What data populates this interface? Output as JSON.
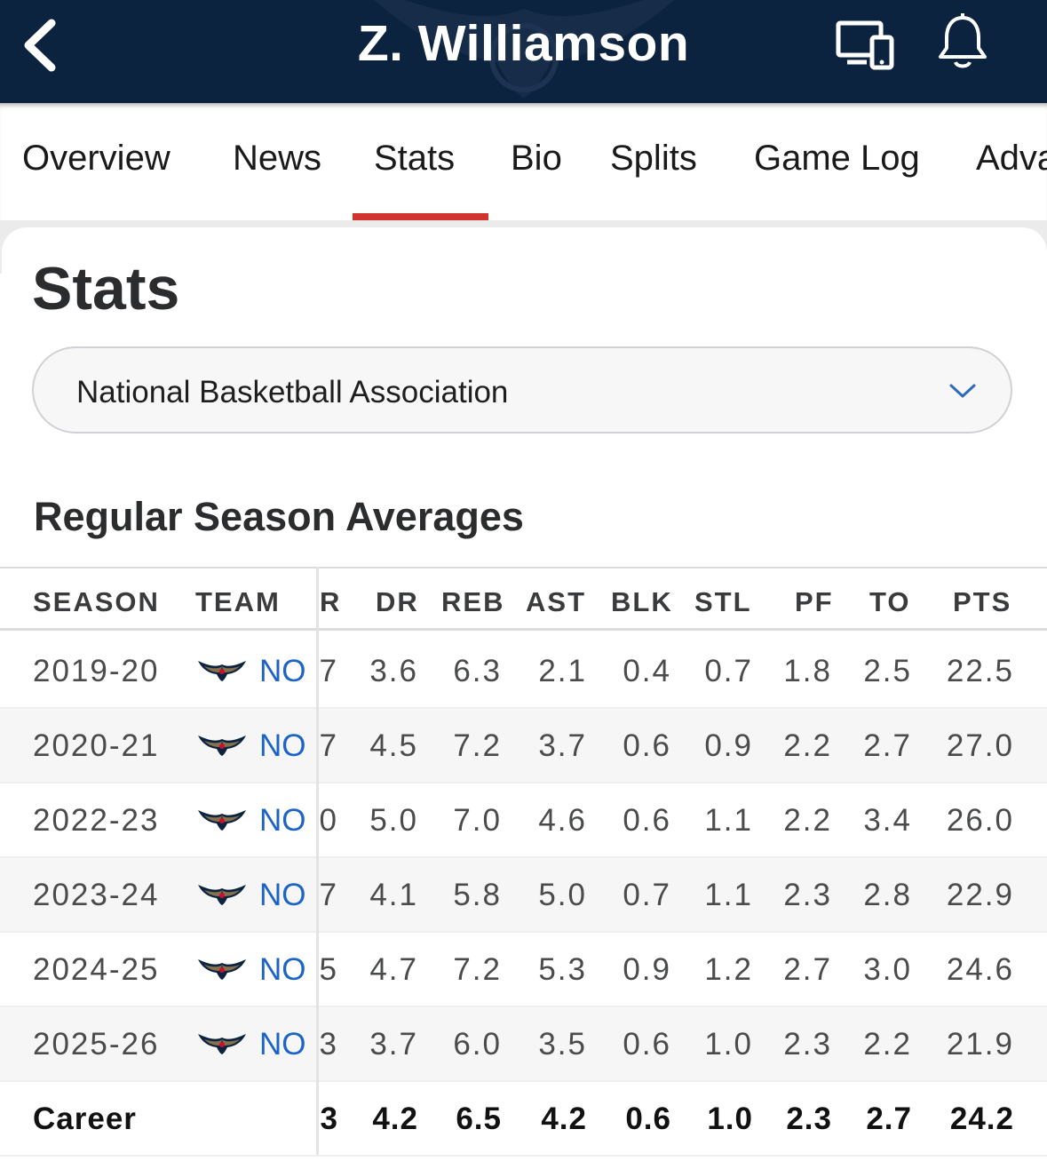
{
  "header": {
    "title": "Z. Williamson",
    "back_icon": "chevron-left-icon",
    "devices_icon": "devices-icon",
    "bell_icon": "bell-icon"
  },
  "tabs": [
    {
      "label": "Overview",
      "active": false
    },
    {
      "label": "News",
      "active": false
    },
    {
      "label": "Stats",
      "active": true
    },
    {
      "label": "Bio",
      "active": false
    },
    {
      "label": "Splits",
      "active": false
    },
    {
      "label": "Game Log",
      "active": false
    },
    {
      "label": "Adva",
      "active": false
    }
  ],
  "accent_color": "#d0342c",
  "header_color": "#0c2340",
  "page_title": "Stats",
  "league_select": {
    "value": "National Basketball Association"
  },
  "section": {
    "title": "Regular Season Averages"
  },
  "table": {
    "columns": [
      "SEASON",
      "TEAM",
      "R",
      "DR",
      "REB",
      "AST",
      "BLK",
      "STL",
      "PF",
      "TO",
      "PTS"
    ],
    "rows": [
      {
        "season": "2019-20",
        "team": "NO",
        "stats": [
          "7",
          "3.6",
          "6.3",
          "2.1",
          "0.4",
          "0.7",
          "1.8",
          "2.5",
          "22.5"
        ]
      },
      {
        "season": "2020-21",
        "team": "NO",
        "stats": [
          "7",
          "4.5",
          "7.2",
          "3.7",
          "0.6",
          "0.9",
          "2.2",
          "2.7",
          "27.0"
        ]
      },
      {
        "season": "2022-23",
        "team": "NO",
        "stats": [
          "0",
          "5.0",
          "7.0",
          "4.6",
          "0.6",
          "1.1",
          "2.2",
          "3.4",
          "26.0"
        ]
      },
      {
        "season": "2023-24",
        "team": "NO",
        "stats": [
          "7",
          "4.1",
          "5.8",
          "5.0",
          "0.7",
          "1.1",
          "2.3",
          "2.8",
          "22.9"
        ]
      },
      {
        "season": "2024-25",
        "team": "NO",
        "stats": [
          "5",
          "4.7",
          "7.2",
          "5.3",
          "0.9",
          "1.2",
          "2.7",
          "3.0",
          "24.6"
        ]
      },
      {
        "season": "2025-26",
        "team": "NO",
        "stats": [
          "3",
          "3.7",
          "6.0",
          "3.5",
          "0.6",
          "1.0",
          "2.3",
          "2.2",
          "21.9"
        ]
      }
    ],
    "career": {
      "label": "Career",
      "stats": [
        "3",
        "4.2",
        "6.5",
        "4.2",
        "0.6",
        "1.0",
        "2.3",
        "2.7",
        "24.2"
      ]
    }
  }
}
